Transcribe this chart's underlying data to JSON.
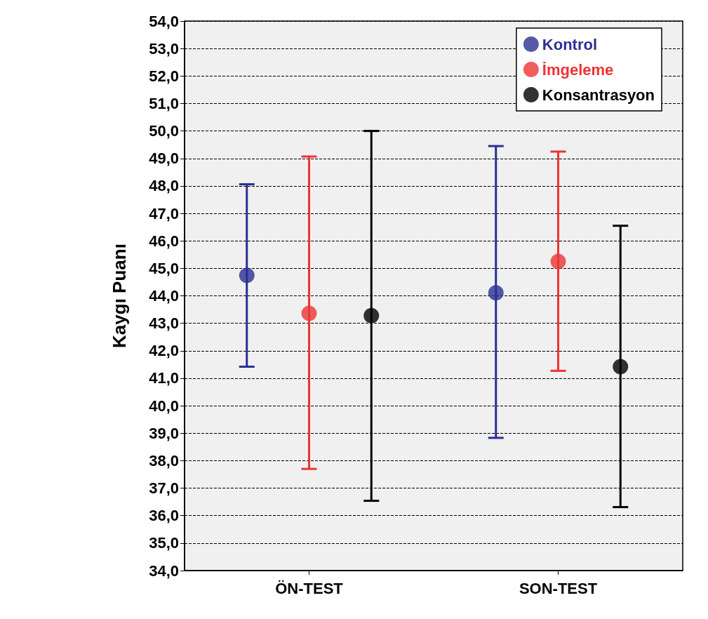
{
  "chart_data": {
    "type": "scatter",
    "ylabel": "Kaygı Puanı",
    "categories": [
      "ÖN-TEST",
      "SON-TEST"
    ],
    "series": [
      {
        "name": "Kontrol",
        "color": "#2a2f92",
        "values": [
          44.74,
          44.11
        ],
        "errors": [
          [
            41.42,
            48.06
          ],
          [
            38.83,
            49.45
          ]
        ]
      },
      {
        "name": "İmgeleme",
        "color": "#ee3333",
        "values": [
          43.36,
          45.25
        ],
        "errors": [
          [
            37.7,
            49.07
          ],
          [
            41.27,
            49.25
          ]
        ]
      },
      {
        "name": "Konsantrasyon",
        "color": "#000000",
        "values": [
          43.28,
          41.42
        ],
        "errors": [
          [
            36.54,
            50.0
          ],
          [
            36.31,
            46.55
          ]
        ]
      }
    ],
    "ylim": [
      34,
      54
    ],
    "yticks": [
      {
        "value": 34,
        "label": "34,0"
      },
      {
        "value": 35,
        "label": "35,0"
      },
      {
        "value": 36,
        "label": "36,0"
      },
      {
        "value": 37,
        "label": "37,0"
      },
      {
        "value": 38,
        "label": "38,0"
      },
      {
        "value": 39,
        "label": "39,0"
      },
      {
        "value": 40,
        "label": "40,0"
      },
      {
        "value": 41,
        "label": "41,0"
      },
      {
        "value": 42,
        "label": "42,0"
      },
      {
        "value": 43,
        "label": "43,0"
      },
      {
        "value": 44,
        "label": "44,0"
      },
      {
        "value": 45,
        "label": "45,0"
      },
      {
        "value": 46,
        "label": "46,0"
      },
      {
        "value": 47,
        "label": "47,0"
      },
      {
        "value": 48,
        "label": "48,0"
      },
      {
        "value": 49,
        "label": "49,0"
      },
      {
        "value": 50,
        "label": "50,0"
      },
      {
        "value": 51,
        "label": "51,0"
      },
      {
        "value": 52,
        "label": "52,0"
      },
      {
        "value": 53,
        "label": "53,0"
      },
      {
        "value": 54,
        "label": "54,0"
      }
    ],
    "grid": "y",
    "legend": "top right",
    "marker": "circle"
  }
}
